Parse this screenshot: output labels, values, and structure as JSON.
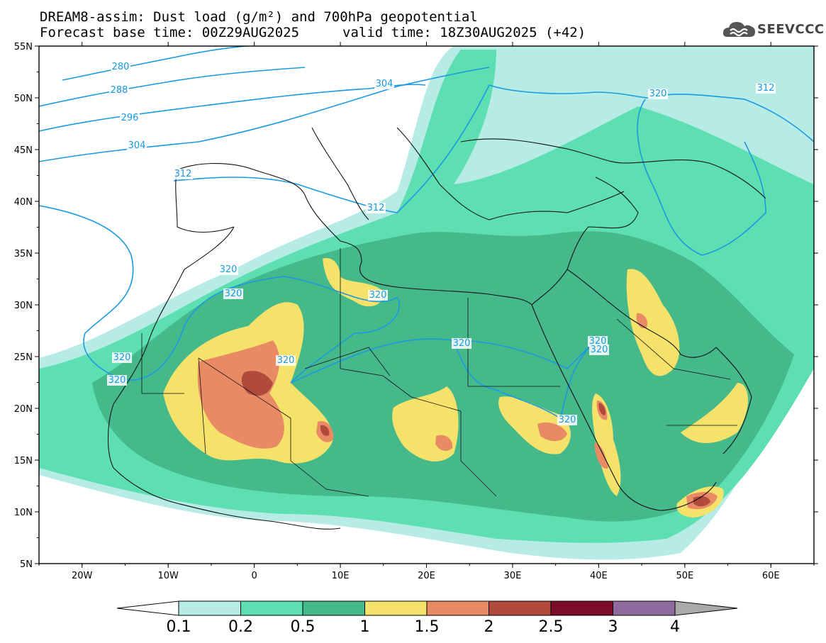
{
  "title": {
    "line1": "DREAM8-assim: Dust load (g/m²) and 700hPa geopotential",
    "line2_base": "Forecast base time: 00Z29AUG2025",
    "line2_valid": "valid time: 18Z30AUG2025 (+42)"
  },
  "logo": {
    "text": "SEEVCCC",
    "icon": "cloud-logo-icon"
  },
  "colors": {
    "c01": "#b7ece6",
    "c02": "#5ddfb1",
    "c05": "#45b98a",
    "c1": "#f4e26a",
    "c15": "#e88b65",
    "c2": "#b04a3c",
    "c25": "#7a0e2a",
    "c3": "#8f6a9c",
    "c4": "#aaaaaa",
    "contour": "#1a9ae0"
  },
  "map": {
    "lon_range": [
      -25,
      65
    ],
    "lat_range": [
      5,
      55
    ],
    "lat_ticks": [
      "55N",
      "50N",
      "45N",
      "40N",
      "35N",
      "30N",
      "25N",
      "20N",
      "15N",
      "10N",
      "5N"
    ],
    "lon_ticks": [
      "20W",
      "10W",
      "0",
      "10E",
      "20E",
      "30E",
      "40E",
      "50E",
      "60E"
    ]
  },
  "contours": {
    "labels": [
      "280",
      "288",
      "296",
      "304",
      "304",
      "312",
      "312",
      "312",
      "320",
      "320",
      "320",
      "320",
      "320",
      "320",
      "320",
      "320",
      "320",
      "320",
      "320"
    ]
  },
  "colorbar": {
    "labels": [
      "0.1",
      "0.2",
      "0.5",
      "1",
      "1.5",
      "2",
      "2.5",
      "3",
      "4"
    ]
  }
}
